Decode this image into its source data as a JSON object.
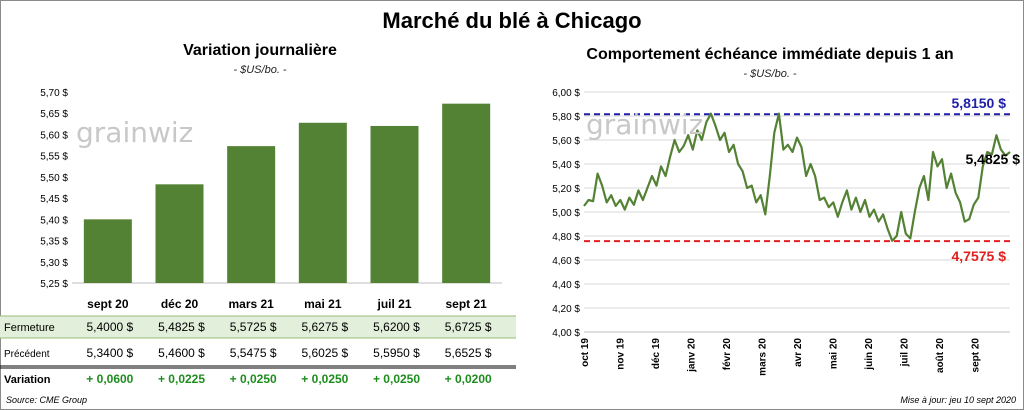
{
  "title": "Marché du blé à Chicago",
  "logo_text": "grainwiz",
  "left": {
    "title": "Variation journalière",
    "unit": "- $US/bo. -",
    "chart_data": {
      "type": "bar",
      "categories": [
        "sept 20",
        "déc 20",
        "mars 21",
        "mai 21",
        "juil 21",
        "sept 21"
      ],
      "values": [
        5.4,
        5.4825,
        5.5725,
        5.6275,
        5.62,
        5.6725
      ],
      "ylim": [
        5.25,
        5.7
      ],
      "yticks": [
        "5,25 $",
        "5,30 $",
        "5,35 $",
        "5,40 $",
        "5,45 $",
        "5,50 $",
        "5,55 $",
        "5,60 $",
        "5,65 $",
        "5,70 $"
      ],
      "bar_color": "#548235"
    },
    "table": {
      "rows": [
        {
          "label": "Fermeture",
          "values": [
            "5,4000  $",
            "5,4825  $",
            "5,5725  $",
            "5,6275  $",
            "5,6200  $",
            "5,6725  $"
          ]
        },
        {
          "label": "Précédent",
          "values": [
            "5,3400  $",
            "5,4600  $",
            "5,5475  $",
            "5,6025  $",
            "5,5950  $",
            "5,6525  $"
          ]
        },
        {
          "label": "Variation",
          "values": [
            "+ 0,0600",
            "+ 0,0225",
            "+ 0,0250",
            "+ 0,0250",
            "+ 0,0250",
            "+ 0,0200"
          ]
        }
      ],
      "highlight_color": "#e2efda",
      "variation_color": "#1e8c1e"
    }
  },
  "right": {
    "title": "Comportement  échéance immédiate depuis 1 an",
    "unit": "- $US/bo. -",
    "chart_data": {
      "type": "line",
      "ylim": [
        4.0,
        6.0
      ],
      "yticks": [
        "4,00 $",
        "4,20 $",
        "4,40 $",
        "4,60 $",
        "4,80 $",
        "5,00 $",
        "5,20 $",
        "5,40 $",
        "5,60 $",
        "5,80 $",
        "6,00 $"
      ],
      "xticks": [
        "oct 19",
        "nov 19",
        "déc 19",
        "janv 20",
        "févr 20",
        "mars 20",
        "avr 20",
        "mai 20",
        "juin 20",
        "juil 20",
        "août 20",
        "sept 20"
      ],
      "high": {
        "value": 5.815,
        "label": "5,8150  $",
        "color": "#1f1fa8"
      },
      "low": {
        "value": 4.7575,
        "label": "4,7575  $",
        "color": "#e02020"
      },
      "last": {
        "value": 5.4825,
        "label": "5,4825 $"
      },
      "line_color": "#548235",
      "series": [
        5.05,
        5.1,
        5.09,
        5.32,
        5.22,
        5.08,
        5.14,
        5.05,
        5.1,
        5.02,
        5.12,
        5.06,
        5.18,
        5.1,
        5.2,
        5.3,
        5.22,
        5.38,
        5.3,
        5.46,
        5.6,
        5.5,
        5.55,
        5.64,
        5.52,
        5.68,
        5.6,
        5.75,
        5.82,
        5.72,
        5.6,
        5.66,
        5.5,
        5.56,
        5.4,
        5.34,
        5.2,
        5.22,
        5.08,
        5.14,
        4.98,
        5.3,
        5.66,
        5.82,
        5.52,
        5.56,
        5.5,
        5.62,
        5.54,
        5.3,
        5.4,
        5.3,
        5.1,
        5.12,
        5.04,
        5.08,
        4.96,
        5.08,
        5.18,
        5.02,
        5.12,
        5.0,
        5.1,
        4.96,
        5.02,
        4.92,
        4.98,
        4.86,
        4.76,
        4.8,
        5.0,
        4.82,
        4.78,
        5.0,
        5.2,
        5.3,
        5.1,
        5.5,
        5.38,
        5.44,
        5.2,
        5.32,
        5.16,
        5.08,
        4.92,
        4.94,
        5.06,
        5.12,
        5.38,
        5.5,
        5.48,
        5.64,
        5.52,
        5.47,
        5.5
      ]
    }
  },
  "source": "Source: CME Group",
  "updated": "Mise à jour: jeu 10 sept 2020"
}
